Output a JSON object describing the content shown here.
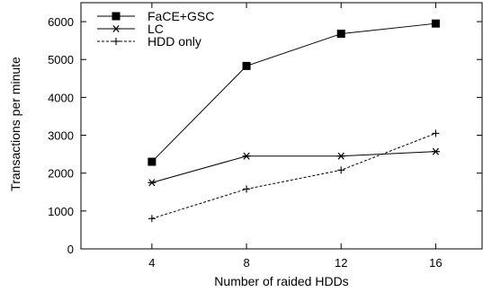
{
  "chart_data": {
    "type": "line",
    "title": "",
    "xlabel": "Number of raided HDDs",
    "ylabel": "Transactions per minute",
    "x": [
      4,
      8,
      12,
      16
    ],
    "xticks": [
      "4",
      "8",
      "12",
      "16"
    ],
    "xlim": [
      1,
      18
    ],
    "ylim": [
      0,
      6500
    ],
    "yticks": [
      0,
      1000,
      2000,
      3000,
      4000,
      5000,
      6000
    ],
    "grid": false,
    "legend_position": "top-left",
    "series": [
      {
        "name": "FaCE+GSC",
        "values": [
          2300,
          4830,
          5680,
          5950
        ],
        "marker": "filled-square",
        "line": "solid",
        "color": "#000000"
      },
      {
        "name": "LC",
        "values": [
          1750,
          2450,
          2450,
          2570
        ],
        "marker": "asterisk",
        "line": "solid",
        "color": "#000000"
      },
      {
        "name": "HDD only",
        "values": [
          800,
          1580,
          2080,
          3050
        ],
        "marker": "plus",
        "line": "dashed",
        "color": "#000000"
      }
    ]
  }
}
